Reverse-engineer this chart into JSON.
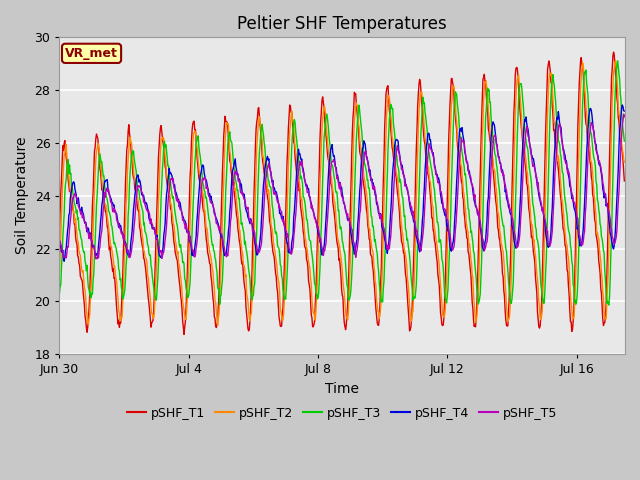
{
  "title": "Peltier SHF Temperatures",
  "xlabel": "Time",
  "ylabel": "Soil Temperature",
  "ylim": [
    18,
    30
  ],
  "xlim_days": [
    0,
    17.5
  ],
  "tick_labels": [
    "Jun 30",
    "Jul 4",
    "Jul 8",
    "Jul 12",
    "Jul 16"
  ],
  "tick_positions": [
    0,
    4,
    8,
    12,
    16
  ],
  "legend_labels": [
    "pSHF_T1",
    "pSHF_T2",
    "pSHF_T3",
    "pSHF_T4",
    "pSHF_T5"
  ],
  "line_colors": [
    "#dd0000",
    "#ff8800",
    "#00cc00",
    "#0000dd",
    "#bb00bb"
  ],
  "annotation_text": "VR_met",
  "annotation_bg": "#ffffaa",
  "annotation_border": "#8b0000",
  "fig_bg_color": "#c8c8c8",
  "plot_bg_color": "#e8e8e8",
  "grid_color": "#ffffff",
  "title_fontsize": 12,
  "axis_label_fontsize": 10,
  "tick_fontsize": 9,
  "legend_fontsize": 9
}
